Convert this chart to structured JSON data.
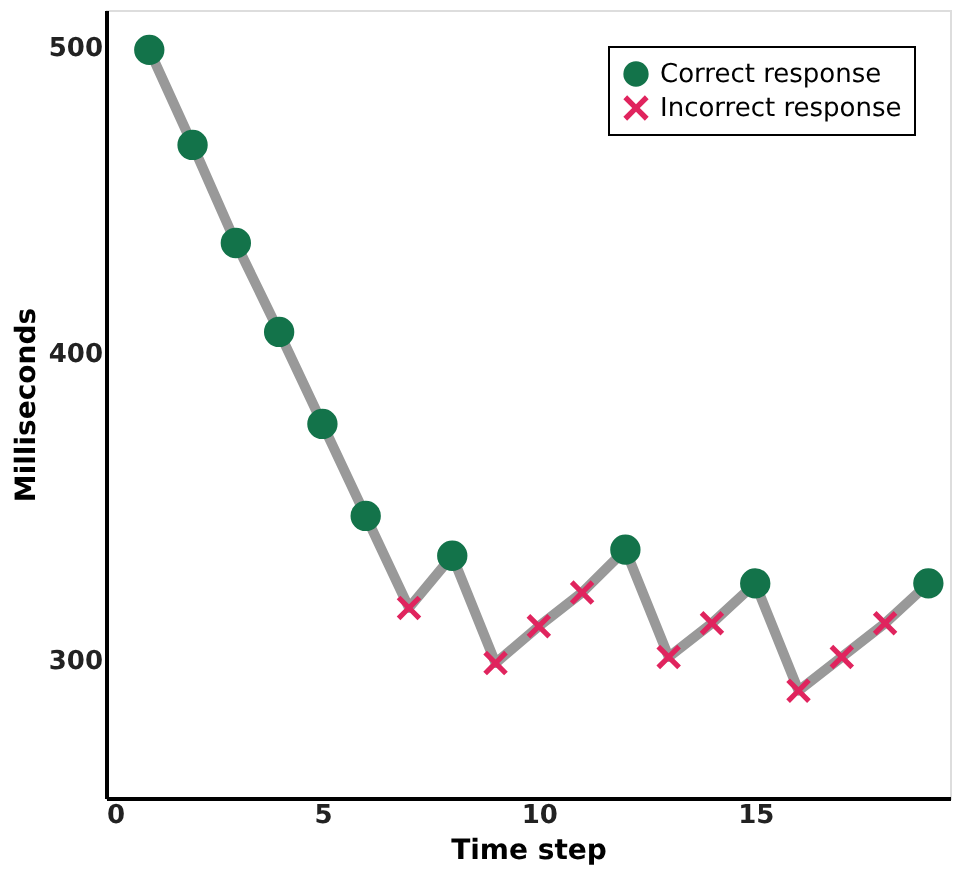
{
  "chart_data": {
    "type": "line",
    "xlabel": "Time step",
    "ylabel": "Milliseconds",
    "x": [
      1,
      2,
      3,
      4,
      5,
      6,
      7,
      8,
      9,
      10,
      11,
      12,
      13,
      14,
      15,
      16,
      17,
      18,
      19
    ],
    "series": [
      {
        "color": "#999999",
        "marker": "none",
        "line_style": "solid",
        "values": [
          499,
          468,
          436,
          407,
          377,
          347,
          317,
          334,
          299,
          311,
          322,
          336,
          301,
          312,
          325,
          290,
          301,
          312,
          325
        ]
      },
      {
        "type": "scatter",
        "name": "Correct response",
        "color": "#13734a",
        "marker": "circle",
        "values": [
          499,
          468,
          436,
          407,
          377,
          347,
          null,
          334,
          null,
          null,
          null,
          336,
          null,
          null,
          325,
          null,
          null,
          null,
          325
        ]
      },
      {
        "type": "scatter",
        "name": "Incorrect response",
        "color": "#e0245e",
        "marker": "cross",
        "values": [
          null,
          null,
          null,
          null,
          null,
          null,
          317,
          null,
          299,
          311,
          322,
          null,
          301,
          312,
          null,
          290,
          301,
          312,
          null
        ]
      }
    ],
    "xlim": [
      0,
      19.5
    ],
    "ylim": [
      255,
      512
    ],
    "xticks": [
      0,
      5,
      10,
      15
    ],
    "yticks": [
      300,
      400,
      500
    ],
    "grid": false,
    "legend": "top right"
  }
}
